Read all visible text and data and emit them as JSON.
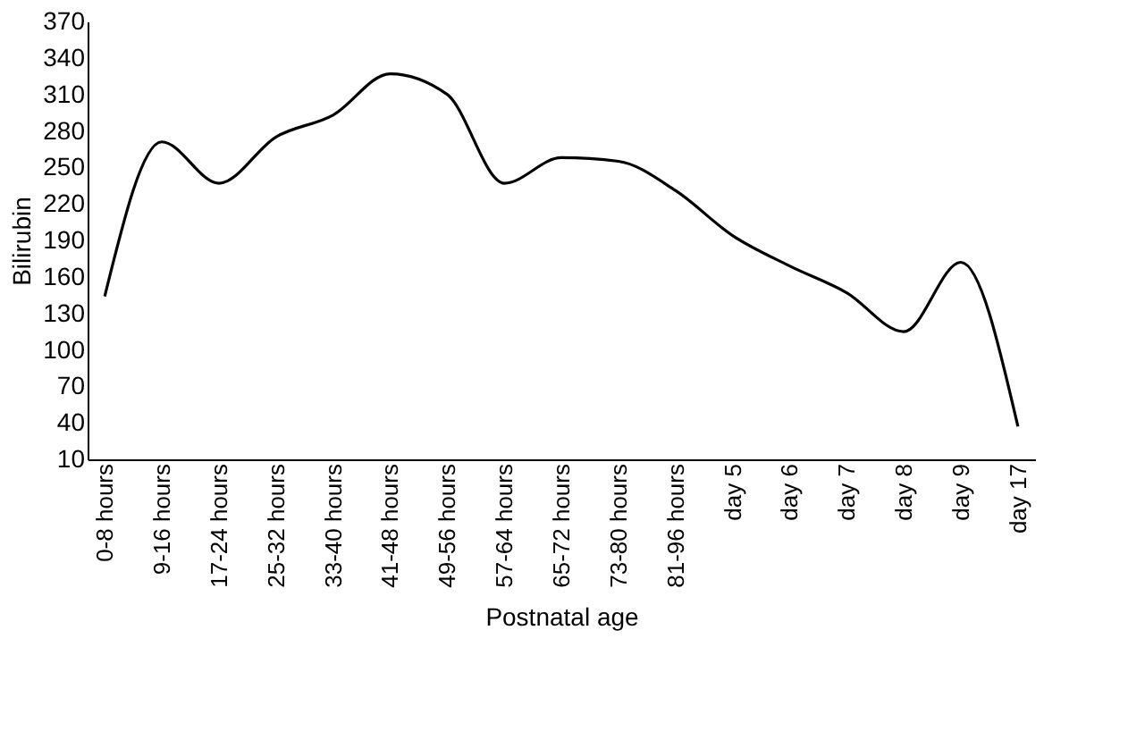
{
  "chart_data": {
    "type": "line",
    "xlabel": "Postnatal age",
    "ylabel": "Bilirubin",
    "categories": [
      "0-8  hours",
      "9-16 hours",
      "17-24 hours",
      "25-32 hours",
      "33-40 hours",
      "41-48 hours",
      "49-56 hours",
      "57-64 hours",
      "65-72 hours",
      "73-80 hours",
      "81-96 hours",
      "day 5",
      "day 6",
      "day 7",
      "day 8",
      "day 9",
      "day 17"
    ],
    "series": [
      {
        "color": "#000000",
        "values": [
          144,
          271,
          237,
          275,
          293,
          327,
          310,
          237,
          258,
          255,
          231,
          194,
          169,
          147,
          115,
          172,
          37
        ]
      }
    ],
    "ylim": [
      10,
      370
    ],
    "yticks": [
      10,
      40,
      70,
      100,
      130,
      160,
      190,
      220,
      250,
      280,
      310,
      340,
      370
    ],
    "grid": false,
    "legend": false,
    "marker": "none",
    "line_style": "solid"
  }
}
